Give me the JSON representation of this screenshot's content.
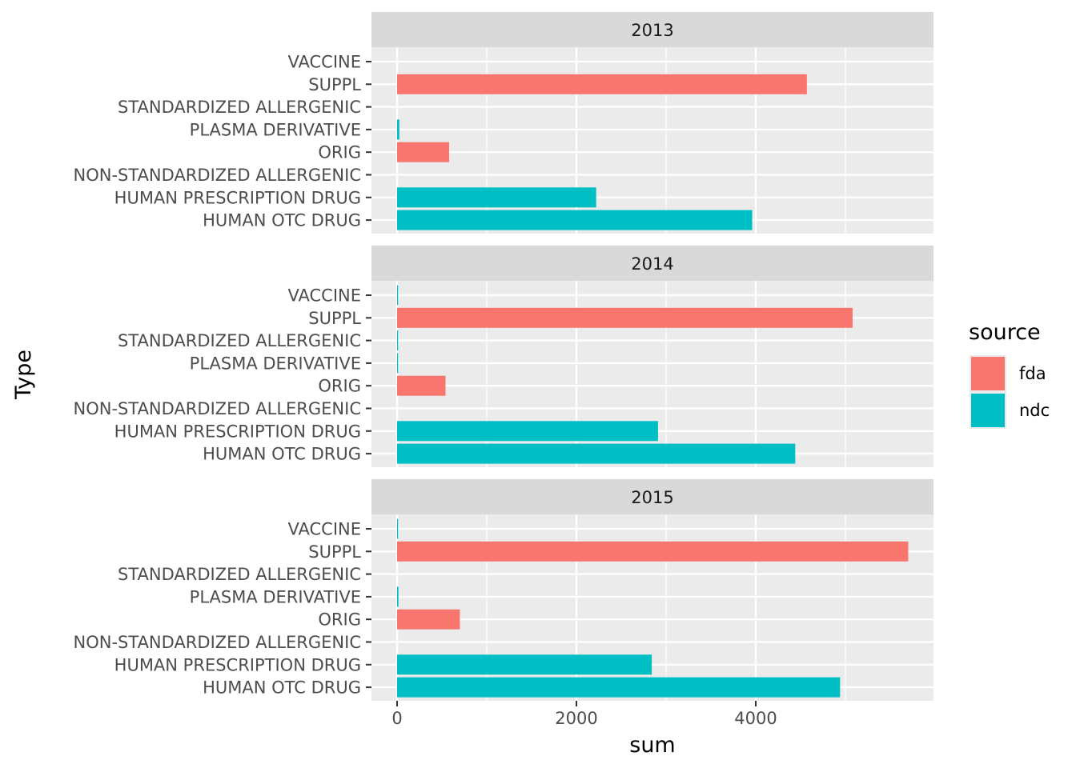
{
  "chart_data": {
    "type": "bar",
    "orientation": "horizontal",
    "facet_by": "year",
    "xlabel": "sum",
    "ylabel": "Type",
    "xlim": [
      -140,
      6000
    ],
    "x_ticks": [
      0,
      2000,
      4000
    ],
    "grid": true,
    "legend": {
      "title": "source",
      "position": "right",
      "entries": [
        {
          "name": "fda",
          "color": "#F8766D"
        },
        {
          "name": "ndc",
          "color": "#00BFC4"
        }
      ]
    },
    "categories": [
      "VACCINE",
      "SUPPL",
      "STANDARDIZED ALLERGENIC",
      "PLASMA DERIVATIVE",
      "ORIG",
      "NON-STANDARDIZED ALLERGENIC",
      "HUMAN PRESCRIPTION DRUG",
      "HUMAN OTC DRUG"
    ],
    "panels": [
      {
        "label": "2013",
        "bars": [
          {
            "category": "VACCINE",
            "source": "ndc",
            "value": 0
          },
          {
            "category": "SUPPL",
            "source": "fda",
            "value": 4570
          },
          {
            "category": "STANDARDIZED ALLERGENIC",
            "source": "ndc",
            "value": 0
          },
          {
            "category": "PLASMA DERIVATIVE",
            "source": "ndc",
            "value": 25
          },
          {
            "category": "ORIG",
            "source": "fda",
            "value": 580
          },
          {
            "category": "NON-STANDARDIZED ALLERGENIC",
            "source": "ndc",
            "value": 0
          },
          {
            "category": "HUMAN PRESCRIPTION DRUG",
            "source": "ndc",
            "value": 2220
          },
          {
            "category": "HUMAN OTC DRUG",
            "source": "ndc",
            "value": 3960
          }
        ]
      },
      {
        "label": "2014",
        "bars": [
          {
            "category": "VACCINE",
            "source": "ndc",
            "value": 8
          },
          {
            "category": "SUPPL",
            "source": "fda",
            "value": 5080
          },
          {
            "category": "STANDARDIZED ALLERGENIC",
            "source": "ndc",
            "value": 8
          },
          {
            "category": "PLASMA DERIVATIVE",
            "source": "ndc",
            "value": 8
          },
          {
            "category": "ORIG",
            "source": "fda",
            "value": 540
          },
          {
            "category": "NON-STANDARDIZED ALLERGENIC",
            "source": "ndc",
            "value": 0
          },
          {
            "category": "HUMAN PRESCRIPTION DRUG",
            "source": "ndc",
            "value": 2910
          },
          {
            "category": "HUMAN OTC DRUG",
            "source": "ndc",
            "value": 4440
          }
        ]
      },
      {
        "label": "2015",
        "bars": [
          {
            "category": "VACCINE",
            "source": "ndc",
            "value": 8
          },
          {
            "category": "SUPPL",
            "source": "fda",
            "value": 5700
          },
          {
            "category": "STANDARDIZED ALLERGENIC",
            "source": "ndc",
            "value": 0
          },
          {
            "category": "PLASMA DERIVATIVE",
            "source": "ndc",
            "value": 15
          },
          {
            "category": "ORIG",
            "source": "fda",
            "value": 700
          },
          {
            "category": "NON-STANDARDIZED ALLERGENIC",
            "source": "ndc",
            "value": 0
          },
          {
            "category": "HUMAN PRESCRIPTION DRUG",
            "source": "ndc",
            "value": 2840
          },
          {
            "category": "HUMAN OTC DRUG",
            "source": "ndc",
            "value": 4940
          }
        ]
      }
    ]
  }
}
